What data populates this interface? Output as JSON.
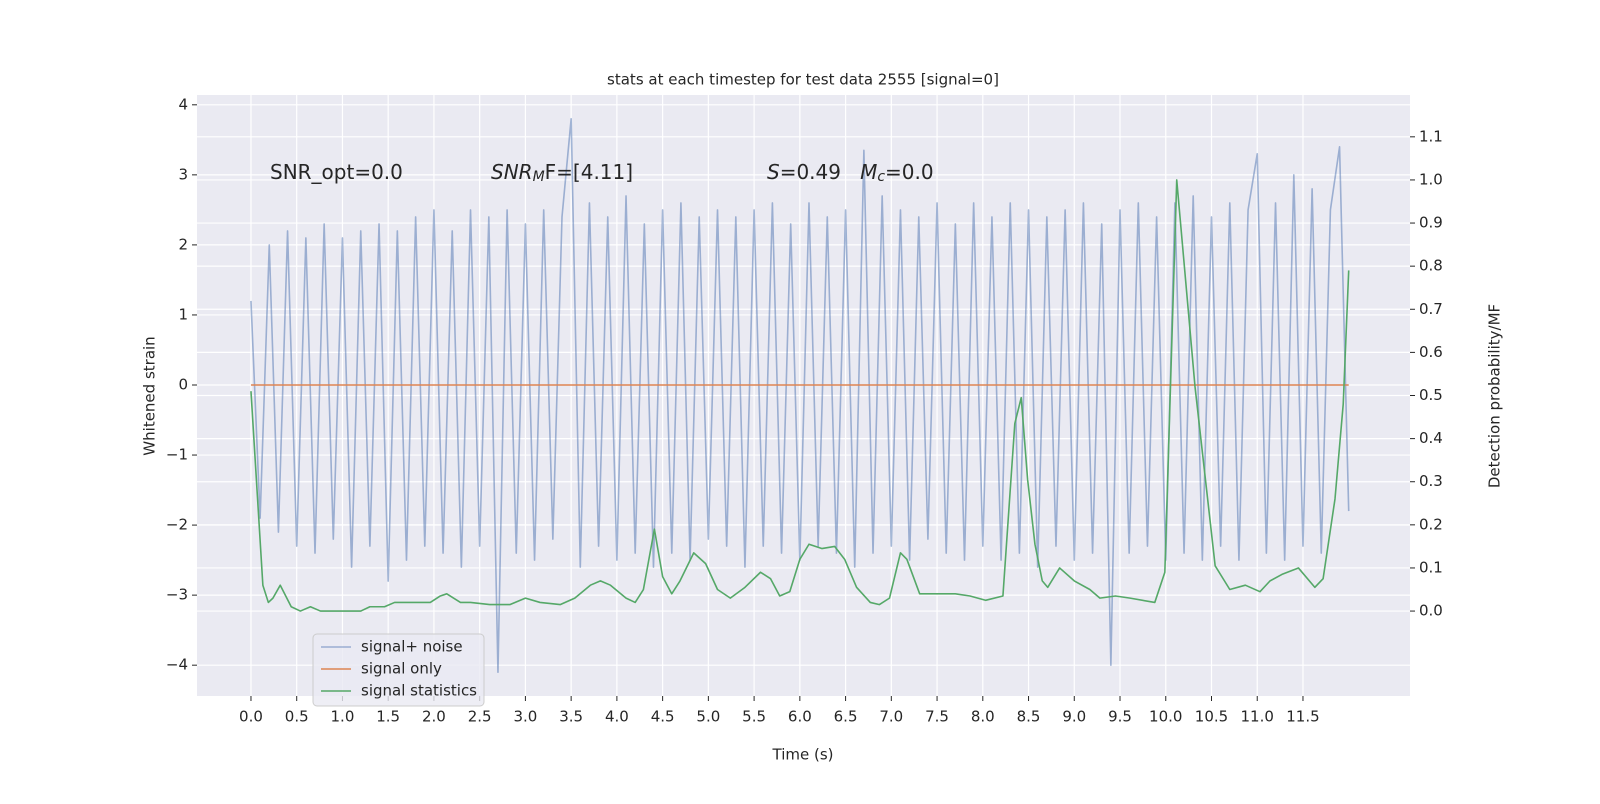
{
  "chart_data": {
    "type": "line",
    "title": "stats at each timestep for test data 2555 [signal=0]",
    "xlabel": "Time (s)",
    "ylabel": "Whitened strain",
    "y2label": "Detection probability/MF",
    "background": "#eaeaf2",
    "grid": true,
    "legend": "lower left",
    "xlim": [
      -0.59,
      12.67
    ],
    "ylim": [
      -4.44,
      4.14
    ],
    "y2lim": [
      -0.197,
      1.197
    ],
    "xticks": [
      {
        "value": 0,
        "label": "0.0"
      },
      {
        "value": 0.5,
        "label": "0.5"
      },
      {
        "value": 1,
        "label": "1.0"
      },
      {
        "value": 1.5,
        "label": "1.5"
      },
      {
        "value": 2,
        "label": "2.0"
      },
      {
        "value": 2.5,
        "label": "2.5"
      },
      {
        "value": 3,
        "label": "3.0"
      },
      {
        "value": 3.5,
        "label": "3.5"
      },
      {
        "value": 4,
        "label": "4.0"
      },
      {
        "value": 4.5,
        "label": "4.5"
      },
      {
        "value": 5,
        "label": "5.0"
      },
      {
        "value": 5.5,
        "label": "5.5"
      },
      {
        "value": 6,
        "label": "6.0"
      },
      {
        "value": 6.5,
        "label": "6.5"
      },
      {
        "value": 7,
        "label": "7.0"
      },
      {
        "value": 7.5,
        "label": "7.5"
      },
      {
        "value": 8,
        "label": "8.0"
      },
      {
        "value": 8.5,
        "label": "8.5"
      },
      {
        "value": 9,
        "label": "9.0"
      },
      {
        "value": 9.5,
        "label": "9.5"
      },
      {
        "value": 10,
        "label": "10.0"
      },
      {
        "value": 10.5,
        "label": "10.5"
      },
      {
        "value": 11,
        "label": "11.0"
      },
      {
        "value": 11.5,
        "label": "11.5"
      }
    ],
    "yticks": [
      {
        "value": -4,
        "label": "−4"
      },
      {
        "value": -3,
        "label": "−3"
      },
      {
        "value": -2,
        "label": "−2"
      },
      {
        "value": -1,
        "label": "−1"
      },
      0,
      1,
      2,
      3,
      4
    ],
    "y2ticks": [
      {
        "value": 0,
        "label": "0.0"
      },
      {
        "value": 0.1,
        "label": "0.1"
      },
      {
        "value": 0.2,
        "label": "0.2"
      },
      {
        "value": 0.3,
        "label": "0.3"
      },
      {
        "value": 0.4,
        "label": "0.4"
      },
      {
        "value": 0.5,
        "label": "0.5"
      },
      {
        "value": 0.6,
        "label": "0.6"
      },
      {
        "value": 0.7,
        "label": "0.7"
      },
      {
        "value": 0.8,
        "label": "0.8"
      },
      {
        "value": 0.9,
        "label": "0.9"
      },
      {
        "value": 1,
        "label": "1.0"
      },
      {
        "value": 1.1,
        "label": "1.1"
      }
    ],
    "annotations": [
      [
        {
          "text": "SNR_opt=0.0"
        }
      ],
      [
        {
          "text": "SNR",
          "style": "italic"
        },
        {
          "text": "M",
          "style": "italic-sub"
        },
        {
          "text": "F=[4.11]"
        }
      ],
      [
        {
          "text": "S",
          "style": "italic"
        },
        {
          "text": "=0.49   "
        },
        {
          "text": "M",
          "style": "italic"
        },
        {
          "text": "c",
          "style": "italic-sub"
        },
        {
          "text": "=0.0"
        }
      ]
    ],
    "series": [
      {
        "name": "signal+ noise",
        "color": "#4c72b0",
        "alpha": 0.5,
        "x": [
          0,
          0.1,
          0.2,
          0.3,
          0.4,
          0.5,
          0.6,
          0.7,
          0.8,
          0.9,
          1,
          1.1,
          1.2,
          1.3,
          1.4,
          1.5,
          1.6,
          1.7,
          1.8,
          1.9,
          2,
          2.1,
          2.2,
          2.3,
          2.4,
          2.5,
          2.6,
          2.7,
          2.8,
          2.9,
          3,
          3.1,
          3.2,
          3.3,
          3.4,
          3.5,
          3.6,
          3.7,
          3.8,
          3.9,
          4,
          4.1,
          4.2,
          4.3,
          4.4,
          4.5,
          4.6,
          4.7,
          4.8,
          4.9,
          5,
          5.1,
          5.2,
          5.3,
          5.4,
          5.5,
          5.6,
          5.7,
          5.8,
          5.9,
          6,
          6.1,
          6.2,
          6.3,
          6.4,
          6.5,
          6.6,
          6.7,
          6.8,
          6.9,
          7,
          7.1,
          7.2,
          7.3,
          7.4,
          7.5,
          7.6,
          7.7,
          7.8,
          7.9,
          8,
          8.1,
          8.2,
          8.3,
          8.4,
          8.5,
          8.6,
          8.7,
          8.8,
          8.9,
          9,
          9.1,
          9.2,
          9.3,
          9.4,
          9.5,
          9.6,
          9.7,
          9.8,
          9.9,
          10,
          10.1,
          10.2,
          10.3,
          10.4,
          10.5,
          10.6,
          10.7,
          10.8,
          10.9,
          11,
          11.1,
          11.2,
          11.3,
          11.4,
          11.5,
          11.6,
          11.7,
          11.8,
          11.9,
          12
        ],
        "values": [
          1.2,
          -1.9,
          2.0,
          -2.1,
          2.2,
          -2.3,
          2.1,
          -2.4,
          2.3,
          -2.2,
          2.1,
          -2.6,
          2.2,
          -2.3,
          2.3,
          -2.8,
          2.2,
          -2.5,
          2.4,
          -2.3,
          2.5,
          -2.4,
          2.2,
          -2.6,
          2.5,
          -2.3,
          2.4,
          -4.1,
          2.5,
          -2.4,
          2.3,
          -2.5,
          2.5,
          -2.2,
          2.4,
          3.8,
          -2.6,
          2.6,
          -2.3,
          2.4,
          -2.5,
          2.7,
          -2.4,
          2.3,
          -2.6,
          2.5,
          -2.4,
          2.6,
          -2.5,
          2.4,
          -2.2,
          2.5,
          -2.3,
          2.4,
          -2.6,
          2.5,
          -2.3,
          2.6,
          -2.4,
          2.3,
          -2.5,
          2.6,
          -2.3,
          2.4,
          -2.4,
          2.5,
          -2.6,
          3.35,
          -2.4,
          2.7,
          -2.3,
          2.5,
          -2.5,
          2.4,
          -2.2,
          2.6,
          -2.4,
          2.3,
          -2.5,
          2.6,
          -2.3,
          2.4,
          -2.5,
          2.6,
          -2.4,
          2.5,
          -2.6,
          2.4,
          -2.3,
          2.5,
          -2.5,
          2.6,
          -2.4,
          2.3,
          -4.0,
          2.5,
          -2.4,
          2.6,
          -2.3,
          2.4,
          -2.5,
          2.6,
          -2.4,
          2.7,
          -2.5,
          2.4,
          -2.3,
          2.6,
          -2.5,
          2.5,
          3.3,
          -2.4,
          2.6,
          -2.5,
          3.0,
          -2.3,
          2.8,
          -2.4,
          2.5,
          3.4,
          -1.8
        ]
      },
      {
        "name": "signal only",
        "color": "#dd8452",
        "x": [
          0,
          12
        ],
        "values": [
          0,
          0
        ]
      },
      {
        "name": "signal statistics",
        "color": "#55a868",
        "axis": "y2",
        "x": [
          0,
          0.13,
          0.19,
          0.24,
          0.32,
          0.44,
          0.54,
          0.65,
          0.76,
          0.97,
          1.2,
          1.3,
          1.46,
          1.57,
          1.74,
          1.85,
          1.96,
          2.07,
          2.14,
          2.29,
          2.4,
          2.61,
          2.83,
          3.0,
          3.16,
          3.38,
          3.54,
          3.71,
          3.82,
          3.93,
          4.1,
          4.2,
          4.29,
          4.41,
          4.5,
          4.6,
          4.69,
          4.84,
          4.97,
          5.1,
          5.24,
          5.4,
          5.57,
          5.68,
          5.78,
          5.89,
          6.0,
          6.1,
          6.24,
          6.38,
          6.49,
          6.62,
          6.77,
          6.87,
          6.98,
          7.1,
          7.17,
          7.31,
          7.48,
          7.7,
          7.86,
          8.03,
          8.22,
          8.35,
          8.42,
          8.49,
          8.57,
          8.65,
          8.71,
          8.84,
          9.0,
          9.17,
          9.28,
          9.45,
          9.61,
          9.88,
          9.99,
          10.12,
          10.32,
          10.54,
          10.7,
          10.87,
          11.03,
          11.14,
          11.27,
          11.45,
          11.63,
          11.72,
          11.85,
          11.94,
          12.0
        ],
        "values": [
          0.51,
          0.06,
          0.02,
          0.03,
          0.06,
          0.01,
          0.0,
          0.01,
          0.0,
          0.0,
          0.0,
          0.01,
          0.01,
          0.02,
          0.02,
          0.02,
          0.02,
          0.035,
          0.04,
          0.02,
          0.02,
          0.015,
          0.015,
          0.03,
          0.02,
          0.015,
          0.03,
          0.06,
          0.07,
          0.06,
          0.03,
          0.02,
          0.05,
          0.19,
          0.08,
          0.04,
          0.07,
          0.135,
          0.11,
          0.05,
          0.03,
          0.055,
          0.09,
          0.075,
          0.035,
          0.045,
          0.12,
          0.155,
          0.145,
          0.15,
          0.12,
          0.055,
          0.02,
          0.015,
          0.03,
          0.135,
          0.12,
          0.04,
          0.04,
          0.04,
          0.035,
          0.025,
          0.035,
          0.435,
          0.495,
          0.305,
          0.155,
          0.07,
          0.055,
          0.1,
          0.07,
          0.05,
          0.03,
          0.035,
          0.03,
          0.02,
          0.09,
          1.0,
          0.52,
          0.105,
          0.05,
          0.06,
          0.045,
          0.07,
          0.085,
          0.1,
          0.055,
          0.075,
          0.26,
          0.48,
          0.79
        ]
      }
    ]
  }
}
